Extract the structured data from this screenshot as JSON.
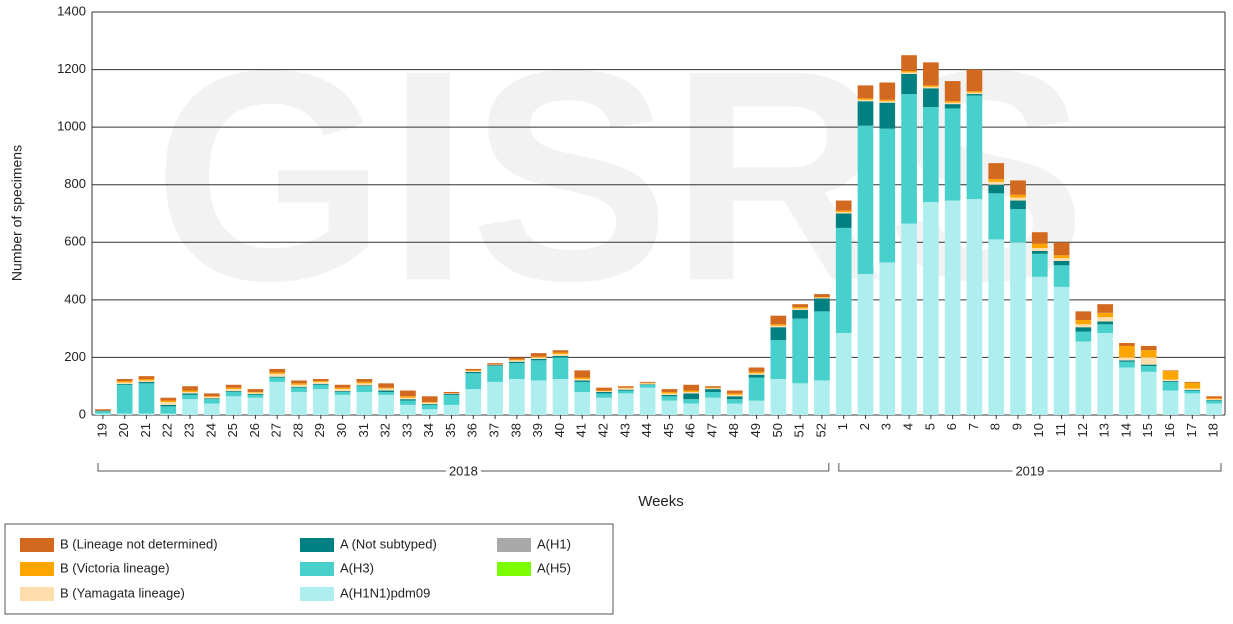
{
  "chart_data": {
    "type": "stacked_bar",
    "watermark": "GISRS",
    "x_label": "Weeks",
    "y_label": "Number of specimens",
    "categories": [
      "19",
      "20",
      "21",
      "22",
      "23",
      "24",
      "25",
      "26",
      "27",
      "28",
      "29",
      "30",
      "31",
      "32",
      "33",
      "34",
      "35",
      "36",
      "37",
      "38",
      "39",
      "40",
      "41",
      "42",
      "43",
      "44",
      "45",
      "46",
      "47",
      "48",
      "49",
      "50",
      "51",
      "52",
      "1",
      "2",
      "3",
      "4",
      "5",
      "6",
      "7",
      "8",
      "9",
      "10",
      "11",
      "12",
      "13",
      "14",
      "15",
      "16",
      "17",
      "18"
    ],
    "groups": [
      {
        "label": "2018",
        "first": "19",
        "last": "52"
      },
      {
        "label": "2019",
        "first": "1",
        "last": "18"
      }
    ],
    "ylim": [
      0,
      1400
    ],
    "yticks": [
      0,
      200,
      400,
      600,
      800,
      1000,
      1200,
      1400
    ],
    "grid": true,
    "series": [
      {
        "name": "B (Lineage not determined)",
        "color": "#d2691e",
        "values": [
          5,
          7,
          10,
          10,
          15,
          10,
          10,
          10,
          12,
          10,
          7,
          10,
          10,
          15,
          20,
          20,
          5,
          5,
          5,
          7,
          12,
          8,
          25,
          10,
          5,
          3,
          10,
          20,
          5,
          10,
          15,
          30,
          10,
          10,
          35,
          45,
          60,
          55,
          80,
          70,
          75,
          55,
          50,
          40,
          45,
          30,
          30,
          10,
          15,
          2,
          3,
          7
        ]
      },
      {
        "name": "B (Victoria lineage)",
        "color": "#ffa500",
        "values": [
          0,
          5,
          5,
          5,
          5,
          2,
          5,
          2,
          5,
          5,
          3,
          5,
          5,
          3,
          5,
          2,
          0,
          2,
          0,
          3,
          3,
          5,
          5,
          2,
          2,
          2,
          5,
          5,
          2,
          5,
          5,
          5,
          5,
          2,
          5,
          5,
          5,
          5,
          5,
          5,
          5,
          10,
          10,
          15,
          10,
          15,
          15,
          40,
          25,
          30,
          20,
          3
        ]
      },
      {
        "name": "B (Yamagata lineage)",
        "color": "#ffdead",
        "values": [
          0,
          5,
          5,
          10,
          5,
          5,
          7,
          5,
          10,
          7,
          7,
          7,
          7,
          7,
          5,
          5,
          2,
          3,
          2,
          5,
          5,
          7,
          5,
          3,
          5,
          3,
          5,
          5,
          3,
          5,
          5,
          5,
          5,
          3,
          5,
          5,
          5,
          5,
          5,
          5,
          5,
          10,
          10,
          10,
          10,
          10,
          15,
          10,
          25,
          5,
          5,
          3
        ]
      },
      {
        "name": "A (Not subtyped)",
        "color": "#008080",
        "values": [
          2,
          3,
          5,
          5,
          5,
          3,
          3,
          3,
          3,
          3,
          3,
          3,
          3,
          5,
          5,
          3,
          3,
          5,
          3,
          5,
          5,
          5,
          5,
          5,
          3,
          2,
          5,
          20,
          10,
          10,
          10,
          45,
          30,
          45,
          50,
          85,
          90,
          70,
          65,
          15,
          5,
          30,
          30,
          10,
          15,
          15,
          10,
          5,
          5,
          3,
          2,
          2
        ]
      },
      {
        "name": "A(H3)",
        "color": "#48d1cc",
        "values": [
          8,
          100,
          105,
          25,
          15,
          15,
          15,
          10,
          15,
          15,
          15,
          10,
          20,
          10,
          15,
          15,
          35,
          55,
          55,
          55,
          70,
          75,
          35,
          15,
          10,
          10,
          15,
          15,
          20,
          15,
          80,
          135,
          225,
          240,
          365,
          515,
          465,
          450,
          330,
          320,
          360,
          160,
          115,
          80,
          75,
          35,
          30,
          20,
          20,
          30,
          10,
          10
        ]
      },
      {
        "name": "A(H1N1)pdm09",
        "color": "#afeeee",
        "values": [
          5,
          5,
          5,
          5,
          55,
          40,
          65,
          60,
          115,
          80,
          90,
          70,
          80,
          70,
          35,
          20,
          35,
          90,
          115,
          125,
          120,
          125,
          80,
          60,
          75,
          95,
          50,
          40,
          60,
          40,
          50,
          125,
          110,
          120,
          285,
          490,
          530,
          665,
          740,
          745,
          750,
          610,
          600,
          480,
          445,
          255,
          285,
          165,
          150,
          85,
          75,
          40
        ]
      },
      {
        "name": "A(H1)",
        "color": "#a9a9a9",
        "values": [
          0,
          0,
          0,
          0,
          0,
          0,
          0,
          0,
          0,
          0,
          0,
          0,
          0,
          0,
          0,
          0,
          0,
          0,
          0,
          0,
          0,
          0,
          0,
          0,
          0,
          0,
          0,
          0,
          0,
          0,
          0,
          0,
          0,
          0,
          0,
          0,
          0,
          0,
          0,
          0,
          0,
          0,
          0,
          0,
          0,
          0,
          0,
          0,
          0,
          0,
          0,
          0
        ]
      },
      {
        "name": "A(H5)",
        "color": "#7cfc00",
        "values": [
          0,
          0,
          0,
          0,
          0,
          0,
          0,
          0,
          0,
          0,
          0,
          0,
          0,
          0,
          0,
          0,
          0,
          0,
          0,
          0,
          0,
          0,
          0,
          0,
          0,
          0,
          0,
          0,
          0,
          0,
          0,
          0,
          0,
          0,
          0,
          0,
          0,
          0,
          0,
          0,
          0,
          0,
          0,
          0,
          0,
          0,
          0,
          0,
          0,
          0,
          0,
          0
        ]
      }
    ]
  }
}
